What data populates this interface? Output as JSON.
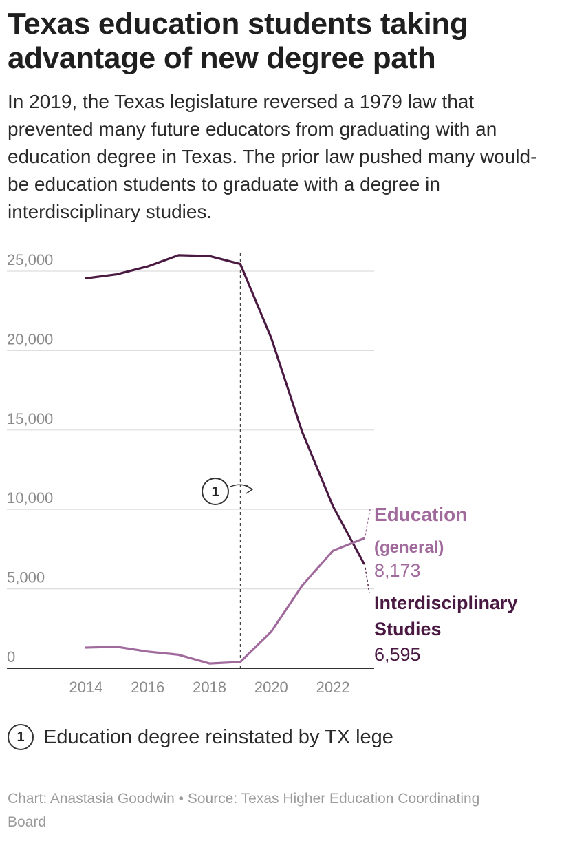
{
  "header": {
    "title": "Texas education students taking advantage of new degree path",
    "subtitle": "In 2019, the Texas legislature reversed a 1979 law that prevented many future educators from graduating with an education degree in Texas. The prior law pushed many would-be education students to graduate with a degree in interdisciplinary studies."
  },
  "chart_data": {
    "type": "line",
    "x": [
      2014,
      2015,
      2016,
      2017,
      2018,
      2019,
      2020,
      2021,
      2022,
      2023
    ],
    "xlim": [
      2014,
      2023
    ],
    "ylim": [
      0,
      25000
    ],
    "xticks": [
      "2014",
      "2016",
      "2018",
      "2020",
      "2022"
    ],
    "yticks": [
      "25,000",
      "20,000",
      "15,000",
      "10,000",
      "5,000",
      "0"
    ],
    "grid": true,
    "series": [
      {
        "name": "Interdisciplinary Studies",
        "color": "#4a1942",
        "values": [
          24550,
          24800,
          25300,
          26000,
          25950,
          25450,
          20800,
          14900,
          10200,
          6595
        ],
        "label_lines": [
          "Interdisciplinary",
          "Studies"
        ],
        "value_label": "6,595"
      },
      {
        "name": "Education (general)",
        "color": "#a06a9c",
        "values": [
          1300,
          1350,
          1050,
          850,
          300,
          400,
          2300,
          5200,
          7400,
          8173
        ],
        "label_lines": [
          "Education",
          "(general)"
        ],
        "value_label": "8,173"
      }
    ],
    "annotation": {
      "x": 2019,
      "marker": "1"
    }
  },
  "note": {
    "marker": "1",
    "text": "Education degree reinstated by TX lege"
  },
  "footer": {
    "credit": "Chart: Anastasia Goodwin • Source: Texas Higher Education Coordinating Board"
  }
}
